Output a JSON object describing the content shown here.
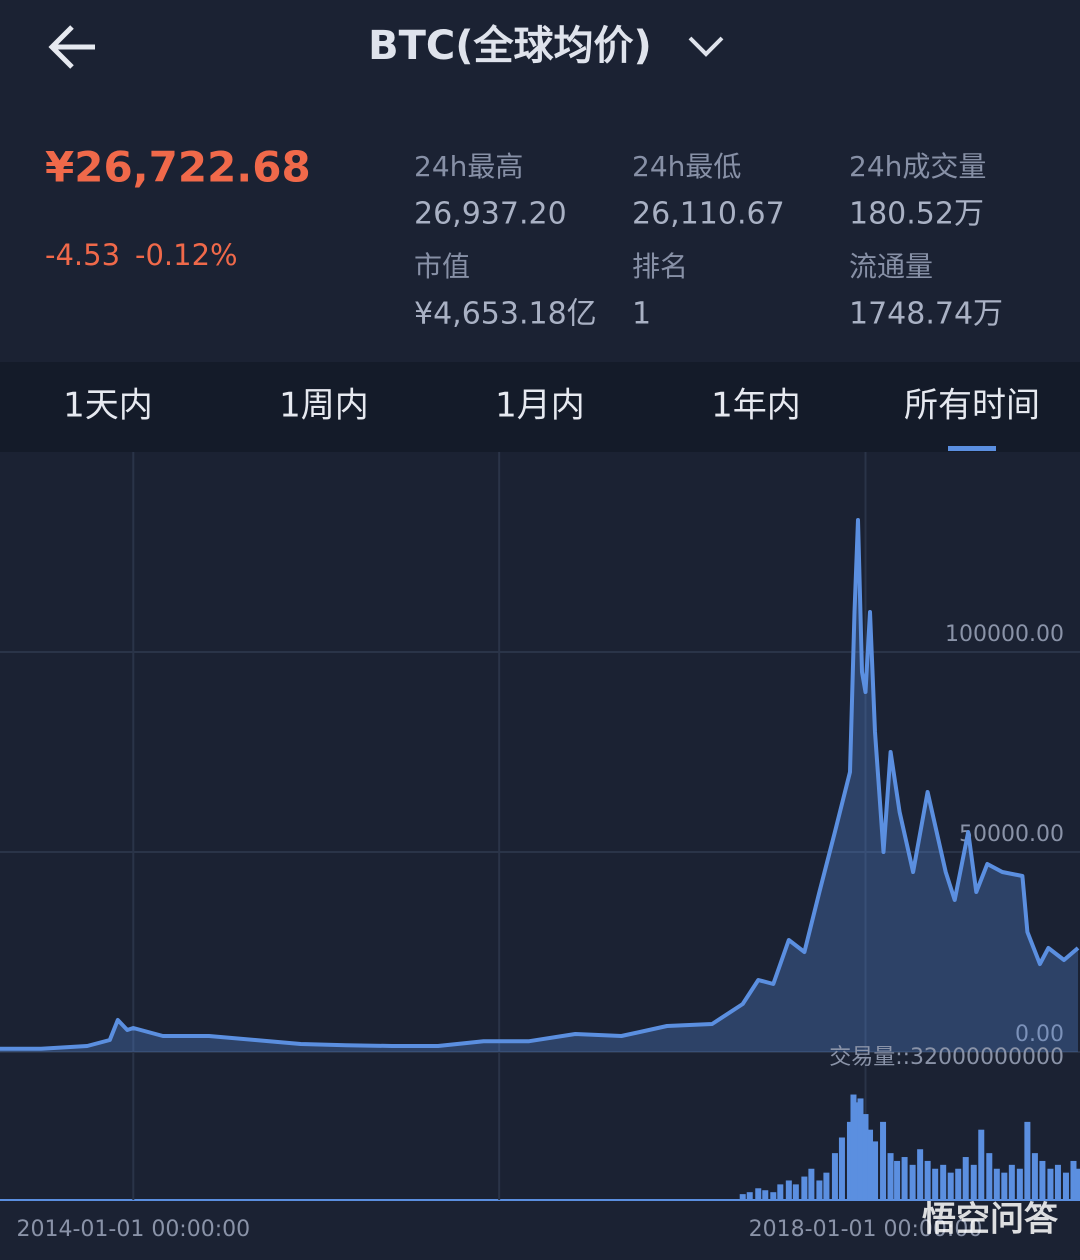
{
  "header": {
    "title": "BTC(全球均价)"
  },
  "price": {
    "value": "¥26,722.68",
    "change": "-4.53",
    "change_pct": "-0.12%"
  },
  "stats": [
    {
      "label": "24h最高",
      "value": "26,937.20"
    },
    {
      "label": "24h最低",
      "value": "26,110.67"
    },
    {
      "label": "24h成交量",
      "value": "180.52万"
    },
    {
      "label": "市值",
      "value": "¥4,653.18亿"
    },
    {
      "label": "排名",
      "value": "1"
    },
    {
      "label": "流通量",
      "value": "1748.74万"
    }
  ],
  "tabs": [
    "1天内",
    "1周内",
    "1月内",
    "1年内",
    "所有时间"
  ],
  "active_tab": 4,
  "watermark": "悟空问答",
  "chart_data": [
    {
      "type": "area",
      "color": "#5b8fe0",
      "x": [
        "2013-04-10",
        "2013-07-01",
        "2013-10-01",
        "2013-11-15",
        "2013-12-01",
        "2013-12-20",
        "2014-01-01",
        "2014-03-01",
        "2014-06-01",
        "2014-09-01",
        "2014-12-01",
        "2015-03-01",
        "2015-06-01",
        "2015-09-01",
        "2015-12-01",
        "2016-03-01",
        "2016-06-01",
        "2016-09-01",
        "2016-12-01",
        "2017-03-01",
        "2017-05-01",
        "2017-06-01",
        "2017-07-01",
        "2017-08-01",
        "2017-09-01",
        "2017-10-01",
        "2017-11-01",
        "2017-12-01",
        "2017-12-10",
        "2017-12-17",
        "2017-12-25",
        "2018-01-01",
        "2018-01-10",
        "2018-01-20",
        "2018-02-06",
        "2018-02-20",
        "2018-03-10",
        "2018-04-06",
        "2018-05-05",
        "2018-06-10",
        "2018-06-28",
        "2018-07-25",
        "2018-08-10",
        "2018-09-01",
        "2018-10-01",
        "2018-11-10",
        "2018-11-20",
        "2018-12-15",
        "2019-01-01",
        "2019-02-01",
        "2019-03-01"
      ],
      "values": [
        800,
        800,
        1500,
        3000,
        8000,
        5500,
        6000,
        4000,
        4000,
        3000,
        2000,
        1700,
        1500,
        1500,
        2700,
        2700,
        4500,
        4000,
        6500,
        7000,
        12000,
        18000,
        17000,
        28000,
        25000,
        40000,
        55000,
        70000,
        110000,
        133000,
        95000,
        90000,
        110000,
        80000,
        50000,
        75000,
        60000,
        45000,
        65000,
        45000,
        38000,
        55000,
        40000,
        47000,
        45000,
        44000,
        30000,
        22000,
        26000,
        23000,
        26000
      ],
      "xlim": [
        "2013-04-10",
        "2019-03-05"
      ],
      "xticks": [
        {
          "value": "2014-01-01",
          "label": "2014-01-01 00:00:00"
        },
        {
          "value": "2016-01-01",
          "label": null
        },
        {
          "value": "2018-01-01",
          "label": "2018-01-01 00:00:00"
        }
      ],
      "ylim": [
        0,
        150000
      ],
      "yticks": [
        {
          "value": 0,
          "label": "0.00"
        },
        {
          "value": 50000,
          "label": "50000.00"
        },
        {
          "value": 100000,
          "label": "100000.00"
        }
      ],
      "grid": true
    },
    {
      "type": "bar",
      "color": "#5b8fe0",
      "x": [
        "2017-05-01",
        "2017-05-15",
        "2017-06-01",
        "2017-06-15",
        "2017-07-01",
        "2017-07-15",
        "2017-08-01",
        "2017-08-15",
        "2017-09-01",
        "2017-09-15",
        "2017-10-01",
        "2017-10-15",
        "2017-11-01",
        "2017-11-15",
        "2017-12-01",
        "2017-12-08",
        "2017-12-15",
        "2017-12-22",
        "2018-01-01",
        "2018-01-10",
        "2018-01-20",
        "2018-02-05",
        "2018-02-20",
        "2018-03-05",
        "2018-03-20",
        "2018-04-05",
        "2018-04-20",
        "2018-05-05",
        "2018-05-20",
        "2018-06-05",
        "2018-06-20",
        "2018-07-05",
        "2018-07-20",
        "2018-08-05",
        "2018-08-20",
        "2018-09-05",
        "2018-09-20",
        "2018-10-05",
        "2018-10-20",
        "2018-11-05",
        "2018-11-20",
        "2018-12-05",
        "2018-12-20",
        "2019-01-05",
        "2019-01-20",
        "2019-02-05",
        "2019-02-20",
        "2019-03-01"
      ],
      "values": [
        1500000000,
        2000000000,
        3000000000,
        2500000000,
        2000000000,
        4000000000,
        5000000000,
        4000000000,
        6000000000,
        8000000000,
        5000000000,
        7000000000,
        12000000000,
        16000000000,
        20000000000,
        27000000000,
        25000000000,
        26000000000,
        22000000000,
        18000000000,
        15000000000,
        20000000000,
        12000000000,
        10000000000,
        11000000000,
        9000000000,
        13000000000,
        10000000000,
        8000000000,
        9000000000,
        7000000000,
        8000000000,
        11000000000,
        9000000000,
        18000000000,
        12000000000,
        8000000000,
        7000000000,
        9000000000,
        8000000000,
        20000000000,
        12000000000,
        10000000000,
        8000000000,
        9000000000,
        7000000000,
        10000000000,
        8000000000
      ],
      "xlim": [
        "2013-04-10",
        "2019-03-05"
      ],
      "ylim": [
        0,
        32000000000
      ],
      "yticks": [
        {
          "value": 32000000000,
          "label": "交易量::32000000000"
        }
      ]
    }
  ]
}
